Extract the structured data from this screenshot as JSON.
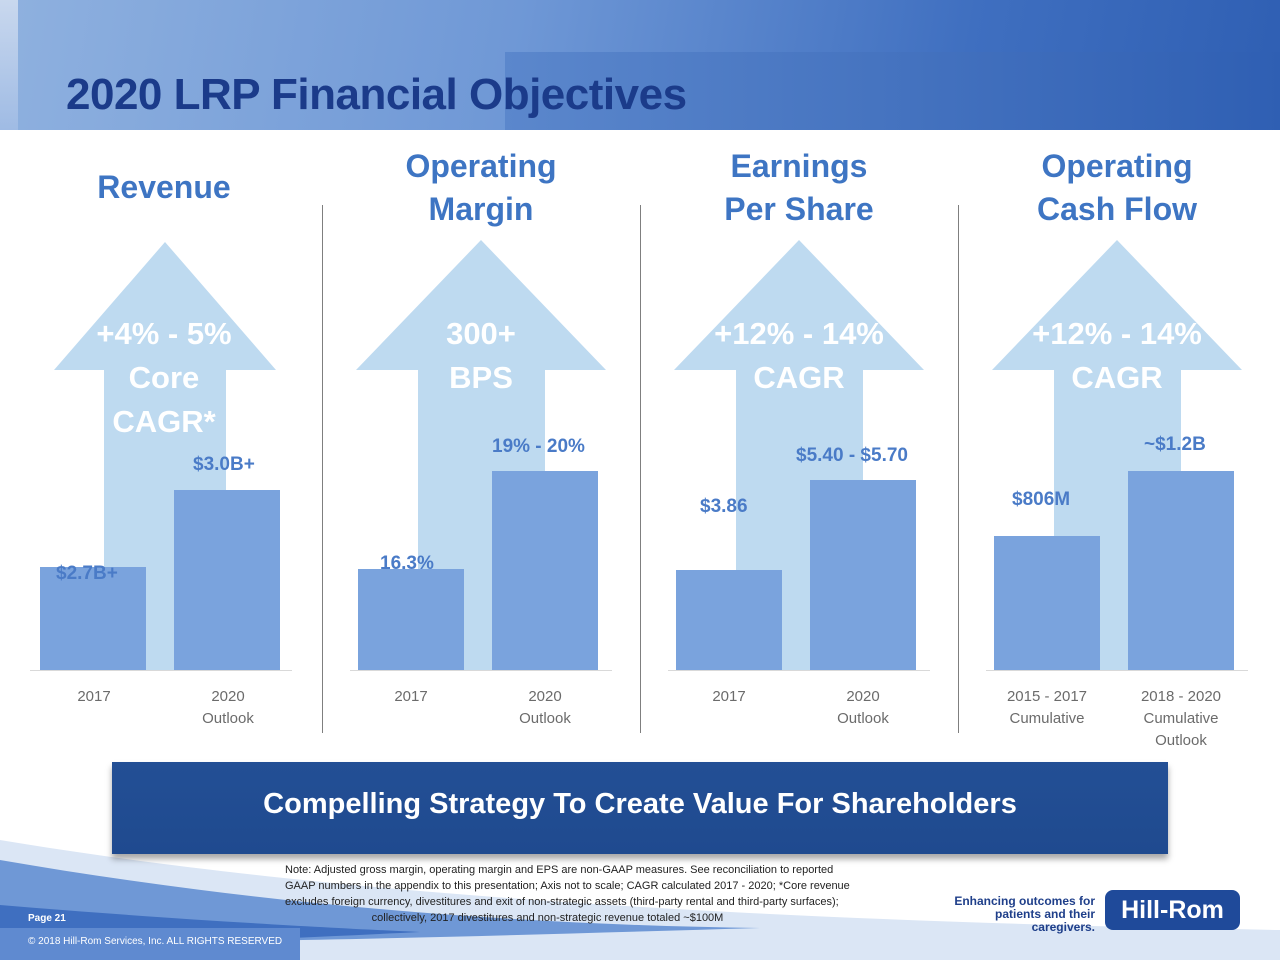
{
  "title": "2020 LRP Financial Objectives",
  "panels": [
    {
      "title": "Revenue",
      "growth_lines": [
        "+4% - 5%",
        "Core",
        "CAGR*"
      ],
      "bar_labels": [
        "$2.7B+",
        "$3.0B+"
      ],
      "x_labels": [
        [
          "2017"
        ],
        [
          "2020",
          "Outlook"
        ]
      ]
    },
    {
      "title_lines": [
        "Operating",
        "Margin"
      ],
      "growth_lines": [
        "300+",
        "BPS"
      ],
      "bar_labels": [
        "16.3%",
        "19% - 20%"
      ],
      "x_labels": [
        [
          "2017"
        ],
        [
          "2020",
          "Outlook"
        ]
      ]
    },
    {
      "title_lines": [
        "Earnings",
        "Per Share"
      ],
      "growth_lines": [
        "+12% - 14%",
        "CAGR"
      ],
      "bar_labels": [
        "$3.86",
        "$5.40 - $5.70"
      ],
      "x_labels": [
        [
          "2017"
        ],
        [
          "2020",
          "Outlook"
        ]
      ]
    },
    {
      "title_lines": [
        "Operating",
        "Cash Flow"
      ],
      "growth_lines": [
        "+12% - 14%",
        "CAGR"
      ],
      "bar_labels": [
        "$806M",
        "~$1.2B"
      ],
      "x_labels": [
        [
          "2015 - 2017",
          "Cumulative"
        ],
        [
          "2018 - 2020",
          "Cumulative",
          "Outlook"
        ]
      ]
    }
  ],
  "chart_data": [
    {
      "type": "bar",
      "title": "Revenue",
      "categories": [
        "2017",
        "2020 Outlook"
      ],
      "values": [
        2.7,
        3.0
      ],
      "unit": "$B"
    },
    {
      "type": "bar",
      "title": "Operating Margin",
      "categories": [
        "2017",
        "2020 Outlook"
      ],
      "values": [
        16.3,
        19.5
      ],
      "unit": "%"
    },
    {
      "type": "bar",
      "title": "Earnings Per Share",
      "categories": [
        "2017",
        "2020 Outlook"
      ],
      "values": [
        3.86,
        5.55
      ],
      "unit": "$"
    },
    {
      "type": "bar",
      "title": "Operating Cash Flow",
      "categories": [
        "2015 - 2017 Cumulative",
        "2018 - 2020 Cumulative Outlook"
      ],
      "values": [
        806,
        1200
      ],
      "unit": "$M"
    }
  ],
  "banner": "Compelling Strategy To Create Value For Shareholders",
  "note_lines": [
    "Note: Adjusted gross margin, operating margin and EPS are non-GAAP measures. See reconciliation to reported",
    "GAAP numbers in the appendix to this presentation; Axis not to scale; CAGR calculated 2017 - 2020; *Core revenue",
    "excludes foreign currency, divestitures and exit of non-strategic assets (third-party rental and third-party surfaces);",
    "collectively, 2017 divestitures and non-strategic revenue totaled ~$100M"
  ],
  "page_label": "Page 21",
  "copyright": "© 2018 Hill-Rom Services, Inc. ALL RIGHTS RESERVED",
  "tagline_lines": [
    "Enhancing outcomes for",
    "patients and their caregivers."
  ],
  "logo_text": "Hill-Rom",
  "colors": {
    "title": "#1b3b8a",
    "accent": "#3e75c3",
    "bar": "#7aa3dd",
    "arrow": "#bedaf0",
    "banner": "#234f95"
  }
}
